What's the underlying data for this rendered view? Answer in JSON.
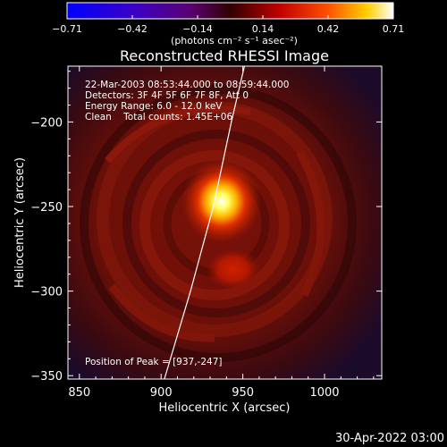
{
  "colorbar": {
    "ticks": [
      "−0.71",
      "−0.42",
      "−0.14",
      "0.14",
      "0.42",
      "0.71"
    ],
    "unit_label": "(photons cm⁻² s⁻¹ asec⁻²)"
  },
  "title": "Reconstructed RHESSI Image",
  "info": {
    "line1": "22-Mar-2003 08:53:44.000 to 08:59:44.000",
    "line2": "Detectors: 3F 4F 5F 6F 7F 8F, Att 0",
    "line3": "Energy Range: 6.0 - 12.0 keV",
    "line4": "Clean    Total counts: 1.45E+06",
    "peak": "Position of Peak = [937,-247]"
  },
  "footer_date": "30-Apr-2022 03:00",
  "chart_data": {
    "type": "heatmap",
    "title": "Reconstructed RHESSI Image",
    "xlabel": "Heliocentric X (arcsec)",
    "ylabel": "Heliocentric Y (arcsec)",
    "xlim": [
      843,
      1035
    ],
    "ylim": [
      -352,
      -167
    ],
    "xticks": [
      "850",
      "900",
      "950",
      "1000"
    ],
    "yticks": [
      "−200",
      "−250",
      "−300",
      "−350"
    ],
    "xtick_values": [
      850,
      900,
      950,
      1000
    ],
    "ytick_values": [
      -200,
      -250,
      -300,
      -350
    ],
    "colorscale_range": [
      -0.71,
      0.71
    ],
    "peak_position": [
      937,
      -247
    ],
    "sources": [
      {
        "x": 937,
        "y": -247,
        "intensity": 0.71
      },
      {
        "x": 944,
        "y": -287,
        "intensity": 0.3
      }
    ],
    "limb_line": [
      [
        902,
        -352
      ],
      [
        918,
        -300
      ],
      [
        932,
        -250
      ],
      [
        943,
        -200
      ],
      [
        951,
        -167
      ]
    ]
  }
}
